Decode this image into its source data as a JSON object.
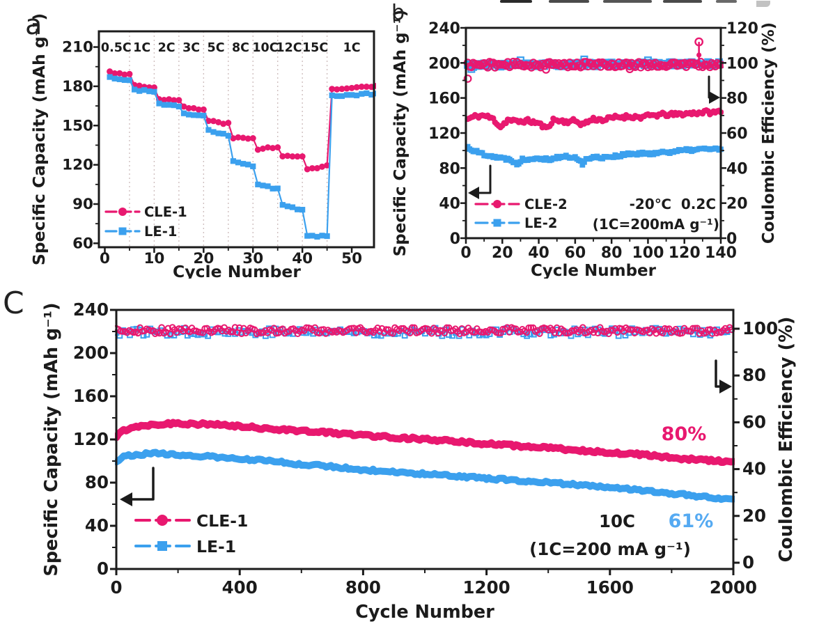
{
  "colors": {
    "pink": "#e8186f",
    "blue": "#3ba0ee",
    "blue_light": "#55aaf2",
    "axis": "#1b1b1b",
    "grid": "#cfbfbf"
  },
  "chart_data": [
    {
      "id": "a",
      "panel_label": "a",
      "type": "scatter",
      "xlabel": "Cycle Number",
      "ylabel": "Specific Capacity (mAh g⁻¹)",
      "xticks": [
        0,
        10,
        20,
        30,
        40,
        50
      ],
      "yticks": [
        60,
        90,
        120,
        150,
        180,
        210
      ],
      "xlim": [
        0,
        55
      ],
      "ylim": [
        57,
        222
      ],
      "grid": "vertical-dotted",
      "grid_cycles": [
        5,
        10,
        15,
        20,
        25,
        30,
        35,
        40,
        45
      ],
      "rate_labels": [
        {
          "text": "0.5C",
          "cycle": 2.3
        },
        {
          "text": "1C",
          "cycle": 7.5
        },
        {
          "text": "2C",
          "cycle": 12.5
        },
        {
          "text": "3C",
          "cycle": 17.5
        },
        {
          "text": "5C",
          "cycle": 22.5
        },
        {
          "text": "8C",
          "cycle": 27.5
        },
        {
          "text": "10C",
          "cycle": 32.5
        },
        {
          "text": "12C",
          "cycle": 37.3
        },
        {
          "text": "15C",
          "cycle": 42.6
        },
        {
          "text": "1C",
          "cycle": 50
        }
      ],
      "legend": [
        {
          "name": "CLE-1",
          "color": "pink",
          "marker": "circle"
        },
        {
          "name": "LE-1",
          "color": "blue",
          "marker": "square"
        }
      ],
      "series": [
        {
          "name": "CLE-1",
          "color": "pink",
          "marker": "circle",
          "seed": 3,
          "jitter": 0.7,
          "segments": [
            [
              1,
              5,
              191,
              189
            ],
            [
              6,
              10,
              181,
              179
            ],
            [
              11,
              15,
              170.5,
              169
            ],
            [
              16,
              20,
              164,
              162
            ],
            [
              21,
              25,
              153.5,
              151.5
            ],
            [
              26,
              30,
              140.5,
              140
            ],
            [
              31,
              35,
              132,
              134
            ],
            [
              36,
              40,
              126.5,
              126
            ],
            [
              41,
              45,
              116.5,
              119.5
            ],
            [
              46,
              55,
              177.5,
              180
            ]
          ]
        },
        {
          "name": "LE-1",
          "color": "blue",
          "marker": "square",
          "seed": 4,
          "jitter": 0.7,
          "segments": [
            [
              1,
              5,
              186.5,
              185
            ],
            [
              6,
              10,
              177.5,
              175.5
            ],
            [
              11,
              15,
              166.5,
              164.5
            ],
            [
              16,
              20,
              159,
              157
            ],
            [
              21,
              25,
              146,
              142.5
            ],
            [
              26,
              30,
              122.5,
              119.5
            ],
            [
              31,
              35,
              105,
              101.5
            ],
            [
              36,
              40,
              89.5,
              85.5
            ],
            [
              41,
              45,
              66,
              65
            ],
            [
              46,
              55,
              172.5,
              174.5
            ]
          ]
        }
      ]
    },
    {
      "id": "b",
      "panel_label": "b",
      "type": "scatter",
      "xlabel": "Cycle Number",
      "ylabel_left": "Specific Capacity (mAh g⁻¹)",
      "ylabel_right": "Coulombic Efficiency (%)",
      "xticks": [
        0,
        20,
        40,
        60,
        80,
        100,
        120,
        140
      ],
      "yticks_left": [
        0,
        40,
        80,
        120,
        160,
        200,
        240
      ],
      "yticks_right": [
        0,
        20,
        40,
        60,
        80,
        100,
        120
      ],
      "xlim": [
        0,
        140
      ],
      "ylim_left": [
        0,
        240
      ],
      "ylim_right": [
        0,
        120
      ],
      "annotation_line1": "-20℃  0.2C",
      "annotation_line2": "(1C=200mA g⁻¹)",
      "legend": [
        {
          "name": "CLE-2",
          "color": "pink",
          "marker": "circle"
        },
        {
          "name": "LE-2",
          "color": "blue",
          "marker": "square"
        }
      ],
      "series": [
        {
          "name": "CLE-2",
          "role": "capacity",
          "color": "pink",
          "marker": "circle",
          "open": false,
          "seed": 11,
          "noise": 2.3,
          "anchors": [
            [
              1,
              136
            ],
            [
              5,
              139
            ],
            [
              10,
              140
            ],
            [
              15,
              136
            ],
            [
              19,
              127
            ],
            [
              23,
              135
            ],
            [
              28,
              133
            ],
            [
              34,
              134
            ],
            [
              40,
              131
            ],
            [
              44,
              125
            ],
            [
              48,
              135
            ],
            [
              55,
              133
            ],
            [
              60,
              134
            ],
            [
              64,
              130
            ],
            [
              70,
              136
            ],
            [
              76,
              135
            ],
            [
              82,
              138
            ],
            [
              90,
              139
            ],
            [
              96,
              138
            ],
            [
              102,
              140
            ],
            [
              108,
              141
            ],
            [
              114,
              141
            ],
            [
              120,
              142
            ],
            [
              126,
              143
            ],
            [
              132,
              144
            ],
            [
              137,
              143
            ],
            [
              140,
              146
            ]
          ]
        },
        {
          "name": "LE-2",
          "role": "capacity",
          "color": "blue",
          "marker": "square",
          "open": false,
          "seed": 22,
          "noise": 1.8,
          "anchors": [
            [
              1,
              104
            ],
            [
              4,
              100
            ],
            [
              8,
              97
            ],
            [
              12,
              95
            ],
            [
              16,
              93
            ],
            [
              20,
              91
            ],
            [
              25,
              90
            ],
            [
              28,
              84
            ],
            [
              31,
              90
            ],
            [
              36,
              91
            ],
            [
              40,
              92
            ],
            [
              45,
              90
            ],
            [
              50,
              92
            ],
            [
              55,
              93
            ],
            [
              60,
              92
            ],
            [
              64,
              85
            ],
            [
              67,
              92
            ],
            [
              72,
              92
            ],
            [
              78,
              93
            ],
            [
              84,
              94
            ],
            [
              90,
              96
            ],
            [
              96,
              96
            ],
            [
              102,
              97
            ],
            [
              108,
              98
            ],
            [
              114,
              99
            ],
            [
              120,
              100
            ],
            [
              126,
              101
            ],
            [
              132,
              102
            ],
            [
              136,
              102
            ],
            [
              140,
              101
            ]
          ]
        },
        {
          "name": "LE-2 CE",
          "role": "efficiency",
          "color": "blue",
          "marker": "square",
          "open": true,
          "seed": 33,
          "noise": 1.1,
          "anchors": [
            [
              1,
              98.7
            ],
            [
              140,
              99.5
            ]
          ],
          "outliers": [
            [
              3,
              96.5
            ],
            [
              30,
              101.5
            ],
            [
              65,
              102
            ],
            [
              100,
              101.5
            ]
          ]
        },
        {
          "name": "CLE-2 CE",
          "role": "efficiency",
          "color": "pink",
          "marker": "circle",
          "open": true,
          "seed": 44,
          "noise": 1.6,
          "anchors": [
            [
              1,
              99
            ],
            [
              140,
              99
            ]
          ],
          "outliers": [
            [
              1,
              91
            ],
            [
              44,
              96.2
            ],
            [
              90,
              96.5
            ]
          ],
          "spike": {
            "cycle": 128,
            "base": 104.5,
            "top": 112
          }
        }
      ]
    },
    {
      "id": "c",
      "panel_label": "C",
      "type": "scatter",
      "xlabel": "Cycle Number",
      "ylabel_left": "Specific Capacity (mAh g⁻¹)",
      "ylabel_right": "Coulombic Efficiency (%)",
      "xticks": [
        0,
        400,
        800,
        1200,
        1600,
        2000
      ],
      "yticks_left": [
        0,
        40,
        80,
        120,
        160,
        200,
        240
      ],
      "yticks_right": [
        0,
        20,
        40,
        60,
        80,
        100
      ],
      "xlim": [
        0,
        2000
      ],
      "ylim_left": [
        0,
        240
      ],
      "ylim_right_top": 100,
      "annotations": [
        {
          "text": "80%",
          "color": "pink",
          "role": "retention-cle1"
        },
        {
          "text": "61%",
          "color": "blue_light",
          "role": "retention-le1"
        },
        {
          "text": "10C",
          "color": "axis",
          "role": "rate"
        },
        {
          "text": "(1C=200 mA g⁻¹)",
          "color": "axis",
          "role": "rate-definition"
        }
      ],
      "legend": [
        {
          "name": "CLE-1",
          "color": "pink",
          "marker": "circle"
        },
        {
          "name": "LE-1",
          "color": "blue",
          "marker": "square"
        }
      ],
      "series": [
        {
          "name": "CLE-1",
          "role": "capacity-band",
          "color": "pink",
          "seed": 55,
          "noise": 1.3,
          "width": 10.5,
          "anchors": [
            [
              0,
              122
            ],
            [
              20,
              128
            ],
            [
              60,
              132
            ],
            [
              120,
              134
            ],
            [
              200,
              135
            ],
            [
              300,
              134
            ],
            [
              400,
              132
            ],
            [
              500,
              130
            ],
            [
              600,
              128
            ],
            [
              700,
              126
            ],
            [
              800,
              124
            ],
            [
              900,
              122
            ],
            [
              1000,
              120
            ],
            [
              1100,
              118
            ],
            [
              1200,
              116
            ],
            [
              1300,
              114
            ],
            [
              1400,
              112
            ],
            [
              1500,
              110
            ],
            [
              1600,
              108
            ],
            [
              1700,
              106
            ],
            [
              1800,
              103
            ],
            [
              1900,
              101
            ],
            [
              2000,
              99
            ]
          ]
        },
        {
          "name": "LE-1",
          "role": "capacity-band",
          "color": "blue",
          "seed": 66,
          "noise": 1.2,
          "width": 10,
          "anchors": [
            [
              0,
              100
            ],
            [
              20,
              104
            ],
            [
              60,
              106
            ],
            [
              120,
              107
            ],
            [
              200,
              106
            ],
            [
              300,
              104
            ],
            [
              400,
              102
            ],
            [
              500,
              100
            ],
            [
              600,
              97
            ],
            [
              700,
              95
            ],
            [
              800,
              92
            ],
            [
              900,
              90
            ],
            [
              1000,
              88
            ],
            [
              1100,
              86
            ],
            [
              1200,
              84
            ],
            [
              1300,
              82
            ],
            [
              1400,
              80
            ],
            [
              1500,
              78
            ],
            [
              1600,
              76
            ],
            [
              1700,
              73
            ],
            [
              1800,
              70
            ],
            [
              1900,
              67
            ],
            [
              2000,
              64
            ]
          ]
        },
        {
          "name": "LE-1 CE",
          "role": "efficiency-scatter",
          "color": "blue",
          "marker": "square",
          "seed": 77,
          "centerline": 98.6,
          "noise": 1.7,
          "step": 11
        },
        {
          "name": "CLE-1 CE",
          "role": "efficiency-scatter",
          "color": "pink",
          "marker": "circle",
          "seed": 88,
          "centerline": 99.2,
          "noise": 1.4,
          "step": 7
        }
      ]
    }
  ]
}
